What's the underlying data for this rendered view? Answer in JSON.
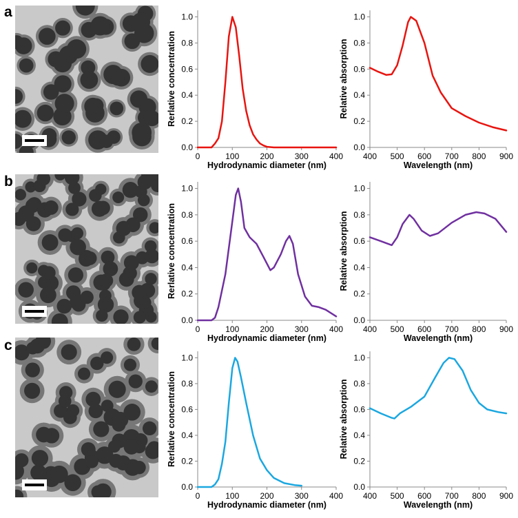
{
  "panel_labels": [
    "a",
    "b",
    "c"
  ],
  "chart_data": [
    {
      "type": "line",
      "x_label": "Hydrodynamic diameter (nm)",
      "y_label": "Rerlative concentration",
      "color": "#e8140f",
      "x": [
        0,
        20,
        40,
        50,
        60,
        70,
        80,
        90,
        100,
        110,
        120,
        130,
        140,
        150,
        160,
        170,
        180,
        190,
        200,
        220,
        250,
        300,
        400
      ],
      "values": [
        0,
        0,
        0,
        0.03,
        0.07,
        0.2,
        0.5,
        0.85,
        1.0,
        0.92,
        0.7,
        0.45,
        0.28,
        0.17,
        0.1,
        0.06,
        0.03,
        0.015,
        0.005,
        0,
        0,
        0,
        0
      ],
      "xlim": [
        0,
        400
      ],
      "xticks": [
        0,
        100,
        200,
        300,
        400
      ],
      "ylim": [
        0,
        1.05
      ],
      "yticks": [
        {
          "value": 0,
          "label": "0.0"
        },
        0.2,
        0.4,
        0.6,
        0.8,
        {
          "value": 1,
          "label": "1.0"
        }
      ]
    },
    {
      "type": "line",
      "x_label": "Wavelength (nm)",
      "y_label": "Relative absorption",
      "color": "#e8140f",
      "x": [
        400,
        430,
        460,
        480,
        500,
        520,
        540,
        550,
        570,
        600,
        630,
        660,
        700,
        750,
        800,
        850,
        900
      ],
      "values": [
        0.61,
        0.58,
        0.555,
        0.56,
        0.63,
        0.78,
        0.96,
        1.0,
        0.97,
        0.8,
        0.55,
        0.42,
        0.3,
        0.24,
        0.19,
        0.155,
        0.13
      ],
      "xlim": [
        400,
        900
      ],
      "xticks": [
        400,
        500,
        600,
        700,
        800,
        900
      ],
      "ylim": [
        0,
        1.05
      ],
      "yticks": [
        {
          "value": 0,
          "label": "0.0"
        },
        0.2,
        0.4,
        0.6,
        0.8,
        {
          "value": 1,
          "label": "1.0"
        }
      ]
    },
    {
      "type": "line",
      "x_label": "Hydrodynamic diameter (nm)",
      "y_label": "Rerlative concentration",
      "color": "#7030a0",
      "x": [
        0,
        40,
        50,
        60,
        80,
        100,
        110,
        117,
        125,
        135,
        150,
        170,
        190,
        210,
        220,
        240,
        255,
        265,
        275,
        290,
        310,
        330,
        350,
        370,
        400
      ],
      "values": [
        0,
        0,
        0.02,
        0.1,
        0.35,
        0.75,
        0.95,
        1.0,
        0.9,
        0.7,
        0.63,
        0.58,
        0.48,
        0.38,
        0.4,
        0.5,
        0.6,
        0.64,
        0.58,
        0.35,
        0.18,
        0.11,
        0.1,
        0.08,
        0.03
      ],
      "xlim": [
        0,
        400
      ],
      "xticks": [
        0,
        100,
        200,
        300,
        400
      ],
      "ylim": [
        0,
        1.05
      ],
      "yticks": [
        {
          "value": 0,
          "label": "0.0"
        },
        0.2,
        0.4,
        0.6,
        0.8,
        {
          "value": 1,
          "label": "1.0"
        }
      ]
    },
    {
      "type": "line",
      "x_label": "Wavelength (nm)",
      "y_label": "Relative absorption",
      "color": "#7030a0",
      "x": [
        400,
        440,
        480,
        500,
        520,
        545,
        560,
        590,
        620,
        650,
        700,
        750,
        790,
        820,
        860,
        900
      ],
      "values": [
        0.63,
        0.6,
        0.57,
        0.63,
        0.73,
        0.8,
        0.77,
        0.68,
        0.64,
        0.66,
        0.74,
        0.8,
        0.82,
        0.81,
        0.77,
        0.67
      ],
      "xlim": [
        400,
        900
      ],
      "xticks": [
        400,
        500,
        600,
        700,
        800,
        900
      ],
      "ylim": [
        0,
        1.05
      ],
      "yticks": [
        {
          "value": 0,
          "label": "0.0"
        },
        0.2,
        0.4,
        0.6,
        0.8,
        {
          "value": 1,
          "label": "1.0"
        }
      ]
    },
    {
      "type": "line",
      "x_label": "Hydrodynamic diameter (nm)",
      "y_label": "Rerlative concentration",
      "color": "#1aa7e0",
      "x": [
        0,
        40,
        50,
        60,
        70,
        80,
        90,
        100,
        108,
        115,
        125,
        140,
        160,
        180,
        200,
        220,
        250,
        280,
        300
      ],
      "values": [
        0,
        0,
        0.02,
        0.06,
        0.18,
        0.35,
        0.65,
        0.92,
        1.0,
        0.97,
        0.85,
        0.65,
        0.4,
        0.22,
        0.13,
        0.07,
        0.03,
        0.015,
        0.01
      ],
      "xlim": [
        0,
        400
      ],
      "xticks": [
        0,
        100,
        200,
        300,
        400
      ],
      "ylim": [
        0,
        1.05
      ],
      "yticks": [
        {
          "value": 0,
          "label": "0.0"
        },
        0.2,
        0.4,
        0.6,
        0.8,
        {
          "value": 1,
          "label": "1.0"
        }
      ]
    },
    {
      "type": "line",
      "x_label": "Wavelength (nm)",
      "y_label": "Relative absorption",
      "color": "#1aa7e0",
      "x": [
        400,
        440,
        480,
        490,
        510,
        550,
        600,
        640,
        670,
        690,
        710,
        740,
        770,
        800,
        830,
        870,
        900
      ],
      "values": [
        0.61,
        0.57,
        0.535,
        0.53,
        0.57,
        0.62,
        0.7,
        0.85,
        0.96,
        1.0,
        0.99,
        0.9,
        0.75,
        0.65,
        0.6,
        0.58,
        0.57
      ],
      "xlim": [
        400,
        900
      ],
      "xticks": [
        400,
        500,
        600,
        700,
        800,
        900
      ],
      "ylim": [
        0,
        1.05
      ],
      "yticks": [
        {
          "value": 0,
          "label": "0.0"
        },
        0.2,
        0.4,
        0.6,
        0.8,
        {
          "value": 1,
          "label": "1.0"
        }
      ]
    }
  ]
}
